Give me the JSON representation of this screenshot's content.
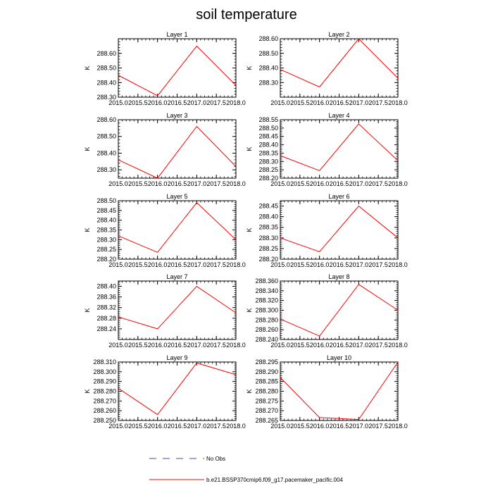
{
  "title": "soil temperature",
  "legend": {
    "items": [
      {
        "label": "No Obs",
        "color": "#4a4a9a",
        "dashed": true
      },
      {
        "label": "b.e21.BSSP370cmip6.f09_g17.pacemaker_pacific.004",
        "color": "#ff0000",
        "dashed": false
      }
    ]
  },
  "chart_data": [
    {
      "type": "line",
      "title": "Layer 1",
      "xlabel": "",
      "ylabel": "K",
      "x": [
        2015,
        2016,
        2017,
        2018
      ],
      "xlim": [
        2015,
        2018
      ],
      "xticks": [
        "2015.0",
        "2015.5",
        "2016.0",
        "2016.5",
        "2017.0",
        "2017.5",
        "2018.0"
      ],
      "ylim": [
        288.3,
        288.7
      ],
      "yticks": [
        "288.30",
        "288.40",
        "288.50",
        "288.60"
      ],
      "series": [
        {
          "name": "b.e21.BSSP370cmip6.f09_g17.pacemaker_pacific.004",
          "color": "#ff0000",
          "values": [
            288.45,
            288.31,
            288.65,
            288.38
          ]
        }
      ]
    },
    {
      "type": "line",
      "title": "Layer 2",
      "xlabel": "",
      "ylabel": "K",
      "x": [
        2015,
        2016,
        2017,
        2018
      ],
      "xlim": [
        2015,
        2018
      ],
      "xticks": [
        "2015.0",
        "2015.5",
        "2016.0",
        "2016.5",
        "2017.0",
        "2017.5",
        "2018.0"
      ],
      "ylim": [
        288.2,
        288.6
      ],
      "yticks": [
        "288.30",
        "288.40",
        "288.50",
        "288.60"
      ],
      "series": [
        {
          "name": "b.e21.BSSP370cmip6.f09_g17.pacemaker_pacific.004",
          "color": "#ff0000",
          "values": [
            288.39,
            288.27,
            288.6,
            288.33
          ]
        }
      ]
    },
    {
      "type": "line",
      "title": "Layer 3",
      "xlabel": "",
      "ylabel": "K",
      "x": [
        2015,
        2016,
        2017,
        2018
      ],
      "xlim": [
        2015,
        2018
      ],
      "xticks": [
        "2015.0",
        "2015.5",
        "2016.0",
        "2016.5",
        "2017.0",
        "2017.5",
        "2018.0"
      ],
      "ylim": [
        288.25,
        288.6
      ],
      "yticks": [
        "288.30",
        "288.40",
        "288.50",
        "288.60"
      ],
      "series": [
        {
          "name": "b.e21.BSSP370cmip6.f09_g17.pacemaker_pacific.004",
          "color": "#ff0000",
          "values": [
            288.36,
            288.25,
            288.56,
            288.32
          ]
        }
      ]
    },
    {
      "type": "line",
      "title": "Layer 4",
      "xlabel": "",
      "ylabel": "K",
      "x": [
        2015,
        2016,
        2017,
        2018
      ],
      "xlim": [
        2015,
        2018
      ],
      "xticks": [
        "2015.0",
        "2015.5",
        "2016.0",
        "2016.5",
        "2017.0",
        "2017.5",
        "2018.0"
      ],
      "ylim": [
        288.2,
        288.55
      ],
      "yticks": [
        "288.20",
        "288.25",
        "288.30",
        "288.35",
        "288.40",
        "288.45",
        "288.50",
        "288.55"
      ],
      "series": [
        {
          "name": "b.e21.BSSP370cmip6.f09_g17.pacemaker_pacific.004",
          "color": "#ff0000",
          "values": [
            288.335,
            288.245,
            288.525,
            288.305
          ]
        }
      ]
    },
    {
      "type": "line",
      "title": "Layer 5",
      "xlabel": "",
      "ylabel": "K",
      "x": [
        2015,
        2016,
        2017,
        2018
      ],
      "xlim": [
        2015,
        2018
      ],
      "xticks": [
        "2015.0",
        "2015.5",
        "2016.0",
        "2016.5",
        "2017.0",
        "2017.5",
        "2018.0"
      ],
      "ylim": [
        288.2,
        288.5
      ],
      "yticks": [
        "288.20",
        "288.25",
        "288.30",
        "288.35",
        "288.40",
        "288.45",
        "288.50"
      ],
      "series": [
        {
          "name": "b.e21.BSSP370cmip6.f09_g17.pacemaker_pacific.004",
          "color": "#ff0000",
          "values": [
            288.32,
            288.235,
            288.49,
            288.3
          ]
        }
      ]
    },
    {
      "type": "line",
      "title": "Layer 6",
      "xlabel": "",
      "ylabel": "K",
      "x": [
        2015,
        2016,
        2017,
        2018
      ],
      "xlim": [
        2015,
        2018
      ],
      "xticks": [
        "2015.0",
        "2015.5",
        "2016.0",
        "2016.5",
        "2017.0",
        "2017.5",
        "2018.0"
      ],
      "ylim": [
        288.2,
        288.475
      ],
      "yticks": [
        "288.20",
        "288.25",
        "288.30",
        "288.35",
        "288.40",
        "288.45"
      ],
      "series": [
        {
          "name": "b.e21.BSSP370cmip6.f09_g17.pacemaker_pacific.004",
          "color": "#ff0000",
          "values": [
            288.3,
            288.235,
            288.45,
            288.3
          ]
        }
      ]
    },
    {
      "type": "line",
      "title": "Layer 7",
      "xlabel": "",
      "ylabel": "K",
      "x": [
        2015,
        2016,
        2017,
        2018
      ],
      "xlim": [
        2015,
        2018
      ],
      "xticks": [
        "2015.0",
        "2015.5",
        "2016.0",
        "2016.5",
        "2017.0",
        "2017.5",
        "2018.0"
      ],
      "ylim": [
        288.2,
        288.42
      ],
      "yticks": [
        "288.24",
        "288.28",
        "288.32",
        "288.36",
        "288.40"
      ],
      "series": [
        {
          "name": "b.e21.BSSP370cmip6.f09_g17.pacemaker_pacific.004",
          "color": "#ff0000",
          "values": [
            288.285,
            288.24,
            288.4,
            288.3
          ]
        }
      ]
    },
    {
      "type": "line",
      "title": "Layer 8",
      "xlabel": "",
      "ylabel": "K",
      "x": [
        2015,
        2016,
        2017,
        2018
      ],
      "xlim": [
        2015,
        2018
      ],
      "xticks": [
        "2015.0",
        "2015.5",
        "2016.0",
        "2016.5",
        "2017.0",
        "2017.5",
        "2018.0"
      ],
      "ylim": [
        288.24,
        288.36
      ],
      "yticks": [
        "288.240",
        "288.260",
        "288.280",
        "288.300",
        "288.320",
        "288.340",
        "288.360"
      ],
      "series": [
        {
          "name": "b.e21.BSSP370cmip6.f09_g17.pacemaker_pacific.004",
          "color": "#ff0000",
          "values": [
            288.282,
            288.247,
            288.353,
            288.3
          ]
        }
      ]
    },
    {
      "type": "line",
      "title": "Layer 9",
      "xlabel": "",
      "ylabel": "K",
      "x": [
        2015,
        2016,
        2017,
        2018
      ],
      "xlim": [
        2015,
        2018
      ],
      "xticks": [
        "2015.0",
        "2015.5",
        "2016.0",
        "2016.5",
        "2017.0",
        "2017.5",
        "2018.0"
      ],
      "ylim": [
        288.25,
        288.31
      ],
      "yticks": [
        "288.250",
        "288.260",
        "288.270",
        "288.280",
        "288.290",
        "288.300",
        "288.310"
      ],
      "series": [
        {
          "name": "b.e21.BSSP370cmip6.f09_g17.pacemaker_pacific.004",
          "color": "#ff0000",
          "values": [
            288.283,
            288.256,
            288.309,
            288.297
          ]
        }
      ]
    },
    {
      "type": "line",
      "title": "Layer 10",
      "xlabel": "",
      "ylabel": "K",
      "x": [
        2015,
        2016,
        2017,
        2018
      ],
      "xlim": [
        2015,
        2018
      ],
      "xticks": [
        "2015.0",
        "2015.5",
        "2016.0",
        "2016.5",
        "2017.0",
        "2017.5",
        "2018.0"
      ],
      "ylim": [
        288.265,
        288.295
      ],
      "yticks": [
        "288.265",
        "288.270",
        "288.275",
        "288.280",
        "288.285",
        "288.290",
        "288.295"
      ],
      "series": [
        {
          "name": "b.e21.BSSP370cmip6.f09_g17.pacemaker_pacific.004",
          "color": "#ff0000",
          "values": [
            288.287,
            288.2665,
            288.2655,
            288.295
          ]
        }
      ]
    }
  ]
}
